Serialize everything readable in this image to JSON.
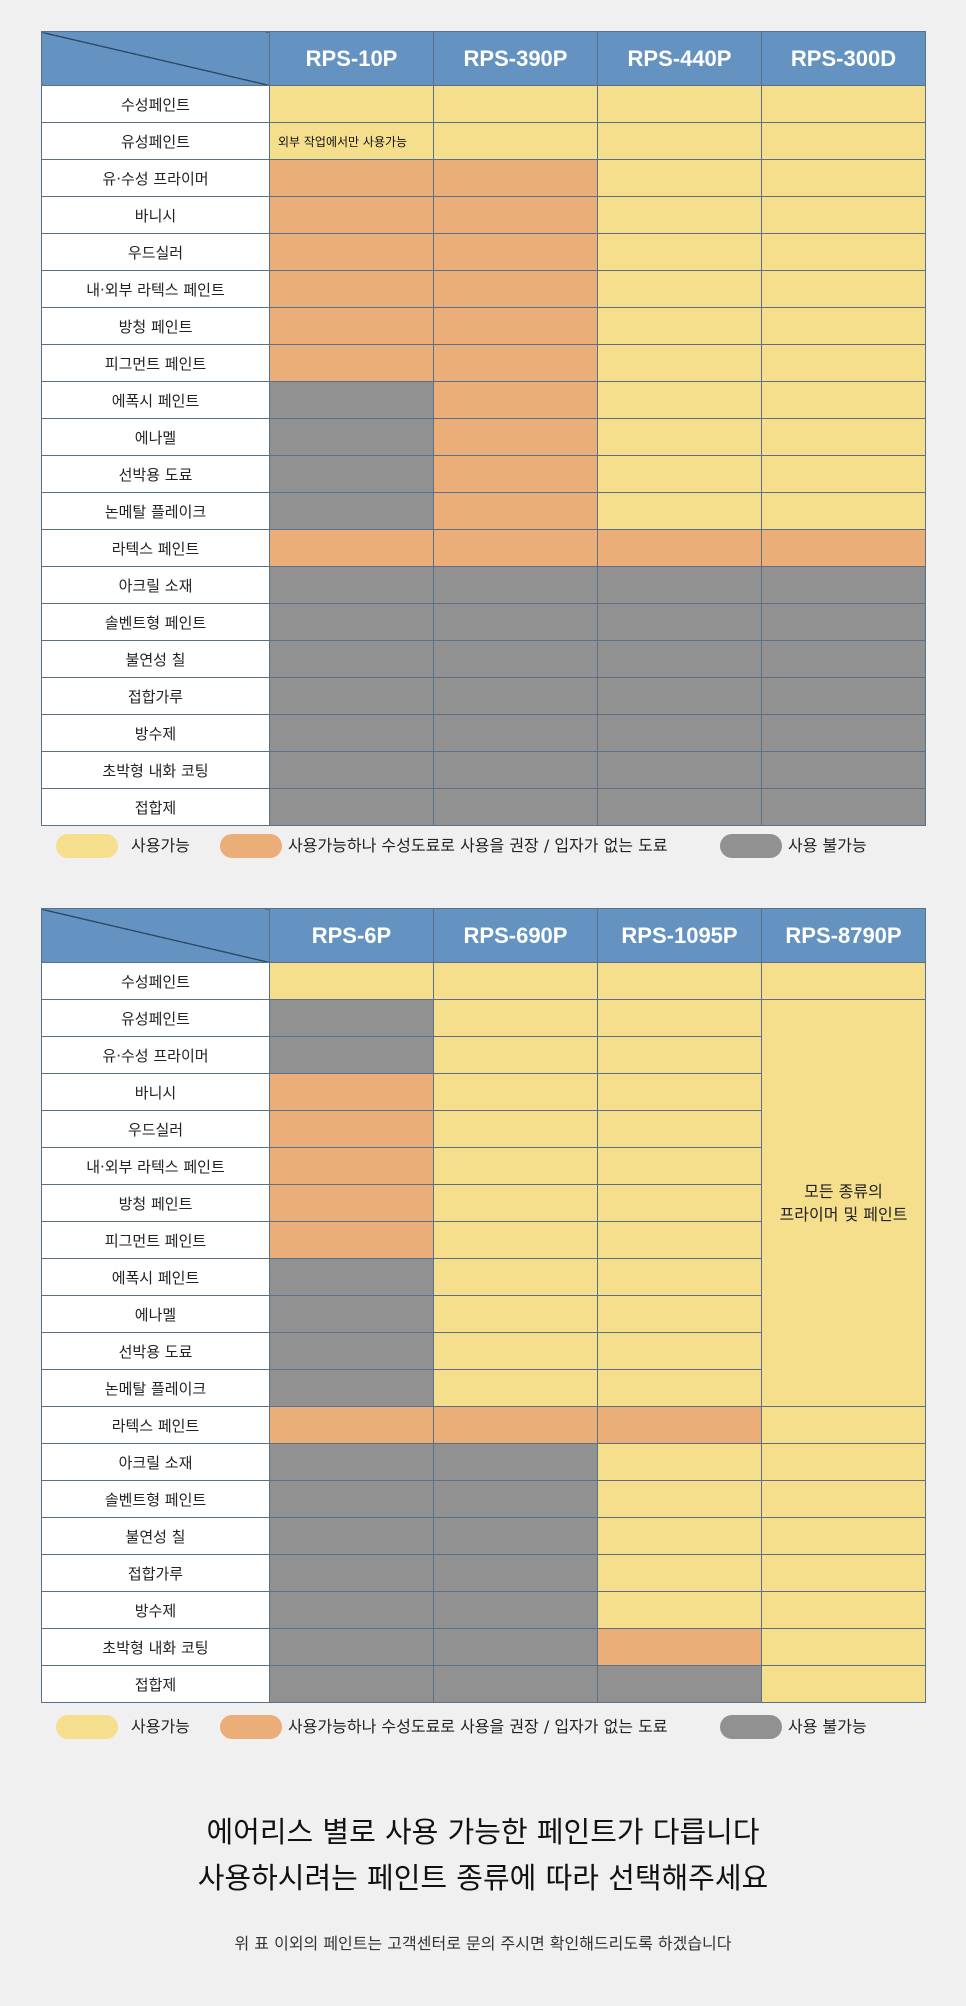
{
  "colors": {
    "available": "#f5df8c",
    "recommend_water": "#ebae78",
    "unavailable": "#919191",
    "header": "#6493c1"
  },
  "rows": [
    "수성페인트",
    "유성페인트",
    "유·수성 프라이머",
    "바니시",
    "우드실러",
    "내·외부 라텍스 페인트",
    "방청 페인트",
    "피그먼트 페인트",
    "에폭시 페인트",
    "에나멜",
    "선박용 도료",
    "논메탈 플레이크",
    "라텍스 페인트",
    "아크릴 소재",
    "솔벤트형 페인트",
    "불연성 칠",
    "접합가루",
    "방수제",
    "초박형 내화 코팅",
    "접합제"
  ],
  "table1": {
    "models": [
      "RPS-10P",
      "RPS-390P",
      "RPS-440P",
      "RPS-300D"
    ],
    "status": [
      [
        "y",
        "y",
        "y",
        "y"
      ],
      [
        "y",
        "y",
        "y",
        "y"
      ],
      [
        "o",
        "o",
        "y",
        "y"
      ],
      [
        "o",
        "o",
        "y",
        "y"
      ],
      [
        "o",
        "o",
        "y",
        "y"
      ],
      [
        "o",
        "o",
        "y",
        "y"
      ],
      [
        "o",
        "o",
        "y",
        "y"
      ],
      [
        "o",
        "o",
        "y",
        "y"
      ],
      [
        "g",
        "o",
        "y",
        "y"
      ],
      [
        "g",
        "o",
        "y",
        "y"
      ],
      [
        "g",
        "o",
        "y",
        "y"
      ],
      [
        "g",
        "o",
        "y",
        "y"
      ],
      [
        "o",
        "o",
        "o",
        "o"
      ],
      [
        "g",
        "g",
        "g",
        "g"
      ],
      [
        "g",
        "g",
        "g",
        "g"
      ],
      [
        "g",
        "g",
        "g",
        "g"
      ],
      [
        "g",
        "g",
        "g",
        "g"
      ],
      [
        "g",
        "g",
        "g",
        "g"
      ],
      [
        "g",
        "g",
        "g",
        "g"
      ],
      [
        "g",
        "g",
        "g",
        "g"
      ]
    ],
    "note": "외부 작업에서만 사용가능"
  },
  "table2": {
    "models": [
      "RPS-6P",
      "RPS-690P",
      "RPS-1095P",
      "RPS-8790P"
    ],
    "status": [
      [
        "y",
        "y",
        "y",
        "y"
      ],
      [
        "g",
        "y",
        "y"
      ],
      [
        "g",
        "y",
        "y"
      ],
      [
        "o",
        "y",
        "y"
      ],
      [
        "o",
        "y",
        "y"
      ],
      [
        "o",
        "y",
        "y"
      ],
      [
        "o",
        "y",
        "y"
      ],
      [
        "o",
        "y",
        "y"
      ],
      [
        "g",
        "y",
        "y"
      ],
      [
        "g",
        "y",
        "y"
      ],
      [
        "g",
        "y",
        "y"
      ],
      [
        "g",
        "y",
        "y"
      ],
      [
        "o",
        "o",
        "o",
        "y"
      ],
      [
        "g",
        "g",
        "y",
        "y"
      ],
      [
        "g",
        "g",
        "y",
        "y"
      ],
      [
        "g",
        "g",
        "y",
        "y"
      ],
      [
        "g",
        "g",
        "y",
        "y"
      ],
      [
        "g",
        "g",
        "y",
        "y"
      ],
      [
        "g",
        "g",
        "o",
        "y"
      ],
      [
        "g",
        "g",
        "g",
        "y"
      ]
    ],
    "merged_note_line1": "모든 종류의",
    "merged_note_line2": "프라이머 및 페인트"
  },
  "legend": {
    "available": "사용가능",
    "recommend_water": "사용가능하나 수성도료로 사용을 권장 / 입자가 없는 도료",
    "unavailable": "사용 불가능"
  },
  "message": {
    "line1": "에어리스 별로 사용 가능한 페인트가 다릅니다",
    "line2": "사용하시려는 페인트 종류에 따라 선택해주세요"
  },
  "footnote": "위 표 이외의 페인트는 고객센터로 문의 주시면 확인해드리도록 하겠습니다"
}
